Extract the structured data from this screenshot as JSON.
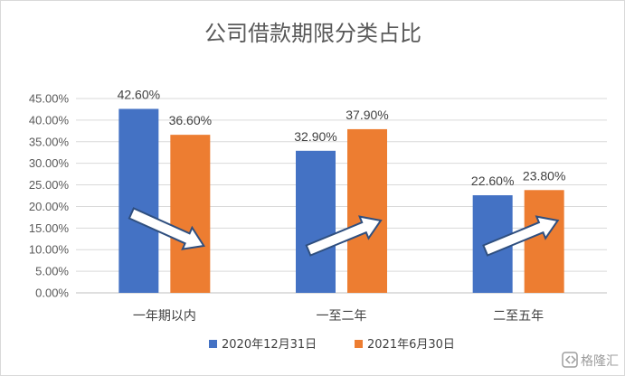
{
  "chart_data": {
    "type": "bar",
    "title": "公司借款期限分类占比",
    "categories": [
      "一年期以内",
      "一至二年",
      "二至五年"
    ],
    "series": [
      {
        "name": "2020年12月31日",
        "color": "#4472c4",
        "values": [
          42.6,
          32.9,
          22.6
        ],
        "labels": [
          "42.60%",
          "32.90%",
          "22.60%"
        ]
      },
      {
        "name": "2021年6月30日",
        "color": "#ed7d31",
        "values": [
          36.6,
          37.9,
          23.8
        ],
        "labels": [
          "36.60%",
          "37.90%",
          "23.80%"
        ]
      }
    ],
    "yticks": [
      "0.00%",
      "5.00%",
      "10.00%",
      "15.00%",
      "20.00%",
      "25.00%",
      "30.00%",
      "35.00%",
      "40.00%",
      "45.00%"
    ],
    "ylim": [
      0,
      45
    ],
    "grid": true,
    "legend_position": "bottom",
    "annotations": [
      "trend-arrow-down",
      "trend-arrow-up",
      "trend-arrow-up"
    ]
  },
  "watermark": {
    "text": "格隆汇",
    "icon": "gelonghui-logo-icon"
  }
}
